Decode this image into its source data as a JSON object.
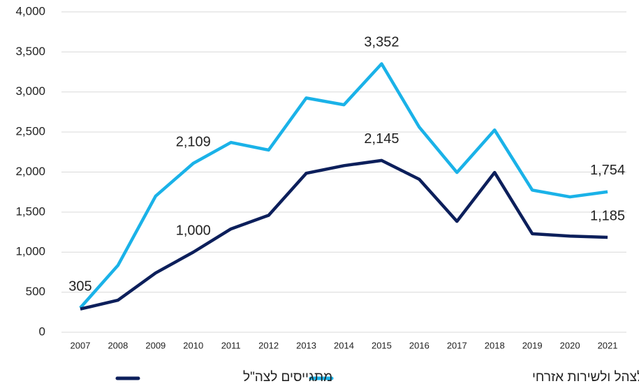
{
  "chart_data": {
    "type": "line",
    "categories": [
      "2007",
      "2008",
      "2009",
      "2010",
      "2011",
      "2012",
      "2013",
      "2014",
      "2015",
      "2016",
      "2017",
      "2018",
      "2019",
      "2020",
      "2021"
    ],
    "series": [
      {
        "name": "מתגייסים לצהל ולשירות אזרחי",
        "color": "#1ab2e8",
        "values": [
          305,
          835,
          1700,
          2109,
          2370,
          2275,
          2925,
          2840,
          3352,
          2560,
          1995,
          2525,
          1775,
          1690,
          1754
        ],
        "value_labels": [
          "305",
          null,
          null,
          "2,109",
          null,
          null,
          null,
          null,
          "3,352",
          null,
          null,
          null,
          null,
          null,
          "1,754"
        ]
      },
      {
        "name": "מתגייסים לצה\"ל",
        "color": "#0c1f5b",
        "values": [
          290,
          400,
          740,
          1000,
          1290,
          1460,
          1985,
          2080,
          2145,
          1910,
          1385,
          1995,
          1230,
          1200,
          1185
        ],
        "value_labels": [
          null,
          null,
          null,
          "1,000",
          null,
          null,
          null,
          null,
          "2,145",
          null,
          null,
          null,
          null,
          null,
          "1,185"
        ]
      }
    ],
    "ylim": [
      0,
      4000
    ],
    "yticks": [
      0,
      500,
      {
        "value": 1000,
        "label": "1,000"
      },
      {
        "value": 1500,
        "label": "1,500"
      },
      {
        "value": 2000,
        "label": "2,000"
      },
      {
        "value": 2500,
        "label": "2,500"
      },
      {
        "value": 3000,
        "label": "3,000"
      },
      {
        "value": 3500,
        "label": "3,500"
      },
      {
        "value": 4000,
        "label": "4,000"
      }
    ],
    "grid": true,
    "legend": "bottom"
  }
}
